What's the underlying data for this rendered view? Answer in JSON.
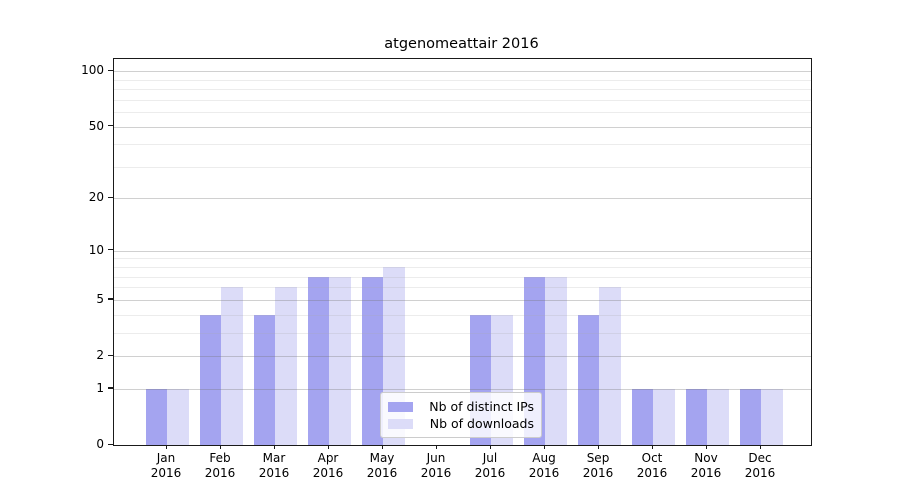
{
  "chart_data": {
    "type": "bar",
    "title": "atgenomeattair 2016",
    "x_months": [
      "Jan",
      "Feb",
      "Mar",
      "Apr",
      "May",
      "Jun",
      "Jul",
      "Aug",
      "Sep",
      "Oct",
      "Nov",
      "Dec"
    ],
    "x_year": "2016",
    "series": [
      {
        "name": "Nb of distinct IPs",
        "color": "#a4a4f0",
        "values": [
          1,
          4,
          4,
          7,
          7,
          0,
          4,
          7,
          4,
          1,
          1,
          1
        ]
      },
      {
        "name": "Nb of downloads",
        "color": "#dcdcf8",
        "values": [
          1,
          6,
          6,
          7,
          8,
          0,
          4,
          7,
          6,
          1,
          1,
          1
        ]
      }
    ],
    "y_scale": "log1p",
    "y_ticks": [
      0,
      1,
      2,
      5,
      10,
      20,
      50,
      100
    ],
    "y_minor_grid": [
      3,
      4,
      6,
      7,
      8,
      9,
      30,
      40,
      60,
      70,
      80,
      90
    ],
    "ylim": [
      0,
      116
    ],
    "grid": true,
    "legend_position": "lower center"
  },
  "colors": {
    "grid_major": "rgba(120,120,120,0.35)",
    "grid_minor": "rgba(170,170,170,0.22)",
    "spine": "#1a1a1a",
    "text": "#000000",
    "legend_border": "#cccccc"
  }
}
